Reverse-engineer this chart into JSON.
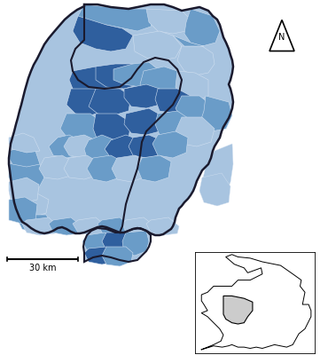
{
  "background_color": "#ffffff",
  "hesse_outline_color": "#1a1a2e",
  "border_color": "#2c3e6b",
  "fill_light": "#a8c4e0",
  "fill_mid": "#6a9cc8",
  "fill_dark": "#2f5f9e",
  "fill_very_dark": "#1e3f7a",
  "sub_border_color": "#d0dff0",
  "scale_bar_text": "30 km",
  "north_label": "N",
  "figsize": [
    3.7,
    4.0
  ],
  "dpi": 100
}
